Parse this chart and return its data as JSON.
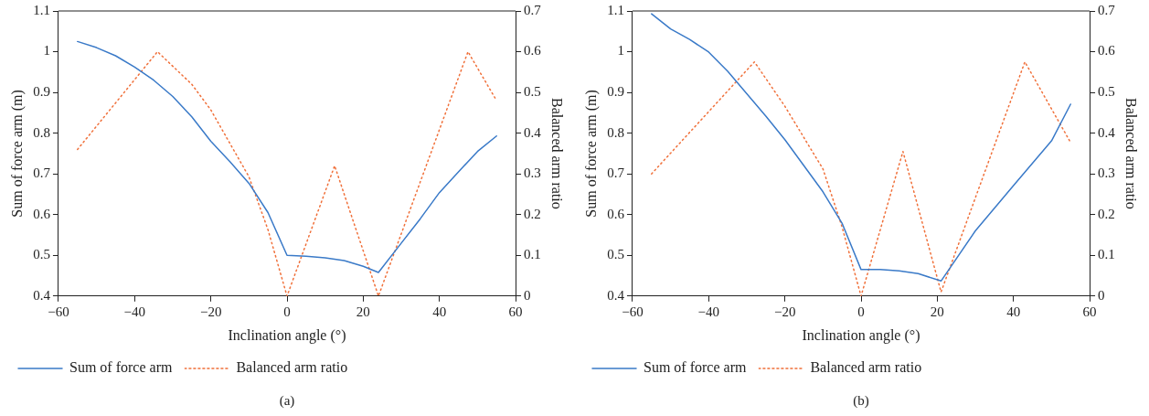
{
  "chart_data": [
    {
      "type": "line",
      "xlabel": "Inclination angle (°)",
      "ylabel": "Sum of force arm (m)",
      "y2label": "Balanced arm ratio",
      "annotations": [
        "(a)"
      ],
      "xlim": [
        -60,
        60
      ],
      "xticks": [
        {
          "value": -60,
          "label": "−60"
        },
        {
          "value": -40,
          "label": "−40"
        },
        {
          "value": -20,
          "label": "−20"
        },
        0,
        20,
        40,
        60
      ],
      "ylim": [
        0.4,
        1.1
      ],
      "yticks": [
        0.4,
        0.5,
        0.6,
        0.7,
        0.8,
        0.9,
        1,
        1.1
      ],
      "y2lim": [
        0,
        0.7
      ],
      "y2ticks": [
        0,
        0.1,
        0.2,
        0.3,
        0.4,
        0.5,
        0.6,
        0.7
      ],
      "grid": false,
      "legend": "bottom",
      "marker": "none",
      "series": [
        {
          "name": "Sum of force arm",
          "color": "#3a7ac8",
          "line_style": "solid",
          "x": [
            -55,
            -50,
            -45,
            -40,
            -35,
            -30,
            -25,
            -20,
            -15,
            -10,
            -5,
            0,
            5,
            10,
            15,
            20,
            24,
            30,
            35,
            40,
            45,
            50,
            55
          ],
          "values": [
            1.025,
            1.01,
            0.99,
            0.962,
            0.93,
            0.89,
            0.84,
            0.78,
            0.73,
            0.677,
            0.605,
            0.5,
            0.498,
            0.494,
            0.487,
            0.473,
            0.458,
            0.53,
            0.59,
            0.654,
            0.705,
            0.755,
            0.793
          ]
        },
        {
          "name": "Balanced arm ratio",
          "color": "#f0703a",
          "line_style": "dotted",
          "axis": "y2",
          "x": [
            -55,
            -34,
            -25,
            -20,
            -10,
            -5,
            0,
            12.5,
            24,
            47.5,
            55
          ],
          "values": [
            0.36,
            0.6,
            0.52,
            0.457,
            0.293,
            0.163,
            0,
            0.32,
            0,
            0.6,
            0.48
          ]
        }
      ]
    },
    {
      "type": "line",
      "xlabel": "Inclination angle (°)",
      "ylabel": "Sum of force arm (m)",
      "y2label": "Balanced arm ratio",
      "annotations": [
        "(b)"
      ],
      "xlim": [
        -60,
        60
      ],
      "xticks": [
        {
          "value": -60,
          "label": "−60"
        },
        {
          "value": -40,
          "label": "−40"
        },
        {
          "value": -20,
          "label": "−20"
        },
        0,
        20,
        40,
        60
      ],
      "ylim": [
        0.4,
        1.1
      ],
      "yticks": [
        0.4,
        0.5,
        0.6,
        0.7,
        0.8,
        0.9,
        1,
        1.1
      ],
      "y2lim": [
        0,
        0.7
      ],
      "y2ticks": [
        0,
        0.1,
        0.2,
        0.3,
        0.4,
        0.5,
        0.6,
        0.7
      ],
      "grid": false,
      "legend": "bottom",
      "marker": "none",
      "series": [
        {
          "name": "Sum of force arm",
          "color": "#3a7ac8",
          "line_style": "solid",
          "x": [
            -55,
            -50,
            -45,
            -40,
            -35,
            -30,
            -25,
            -20,
            -15,
            -10,
            -5,
            0,
            5,
            10,
            15,
            21,
            30,
            40,
            50,
            55
          ],
          "values": [
            1.093,
            1.056,
            1.03,
            0.999,
            0.952,
            0.897,
            0.842,
            0.784,
            0.72,
            0.656,
            0.579,
            0.465,
            0.465,
            0.462,
            0.455,
            0.437,
            0.56,
            0.671,
            0.781,
            0.871
          ]
        },
        {
          "name": "Balanced arm ratio",
          "color": "#f0703a",
          "line_style": "dotted",
          "axis": "y2",
          "x": [
            -55,
            -28,
            -20,
            -10,
            -5,
            0,
            11,
            21,
            43,
            55
          ],
          "values": [
            0.3,
            0.575,
            0.466,
            0.312,
            0.17,
            0,
            0.355,
            0.01,
            0.575,
            0.377
          ]
        }
      ]
    }
  ]
}
